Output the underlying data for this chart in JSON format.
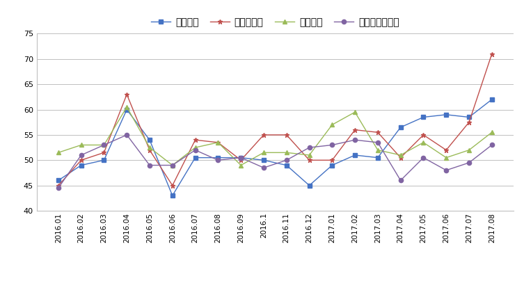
{
  "x_labels": [
    "2016.01",
    "2016.02",
    "2016.03",
    "2016.04",
    "2016.05",
    "2016.06",
    "2016.07",
    "2016.08",
    "2016.09",
    "2016.1",
    "2016.11",
    "2016.12",
    "2017.01",
    "2017.02",
    "2017.03",
    "2017.04",
    "2017.05",
    "2017.06",
    "2017.07",
    "2017.08"
  ],
  "series": {
    "生产指数": {
      "values": [
        46,
        49,
        50,
        60,
        54,
        43,
        50.5,
        50.5,
        50.5,
        50,
        49,
        45,
        49,
        51,
        50.5,
        56.5,
        58.5,
        59,
        58.5,
        62
      ],
      "color": "#4472C4",
      "marker": "s",
      "linestyle": "-"
    },
    "采购量指数": {
      "values": [
        45,
        50,
        51.5,
        63,
        52,
        45,
        54,
        53.5,
        50,
        55,
        55,
        50,
        50,
        56,
        55.5,
        50.5,
        55,
        52,
        57.5,
        71
      ],
      "color": "#C0504D",
      "marker": "*",
      "linestyle": "-"
    },
    "进口指数": {
      "values": [
        51.5,
        53,
        53,
        60.5,
        52.5,
        49,
        52.5,
        53.5,
        49,
        51.5,
        51.5,
        51,
        57,
        59.5,
        52,
        51,
        53.5,
        50.5,
        52,
        55.5
      ],
      "color": "#9BBB59",
      "marker": "^",
      "linestyle": "-"
    },
    "原材料库存指数": {
      "values": [
        44.5,
        51,
        53,
        55,
        49,
        49,
        52,
        50,
        50.5,
        48.5,
        50,
        52.5,
        53,
        54,
        53.5,
        46,
        50.5,
        48,
        49.5,
        53
      ],
      "color": "#8064A2",
      "marker": "o",
      "linestyle": "-"
    }
  },
  "ylim": [
    40,
    75
  ],
  "yticks": [
    40,
    45,
    50,
    55,
    60,
    65,
    70,
    75
  ],
  "background_color": "#FFFFFF",
  "grid_color": "#C0C0C0",
  "legend_order": [
    "生产指数",
    "采购量指数",
    "进口指数",
    "原材料库存指数"
  ]
}
